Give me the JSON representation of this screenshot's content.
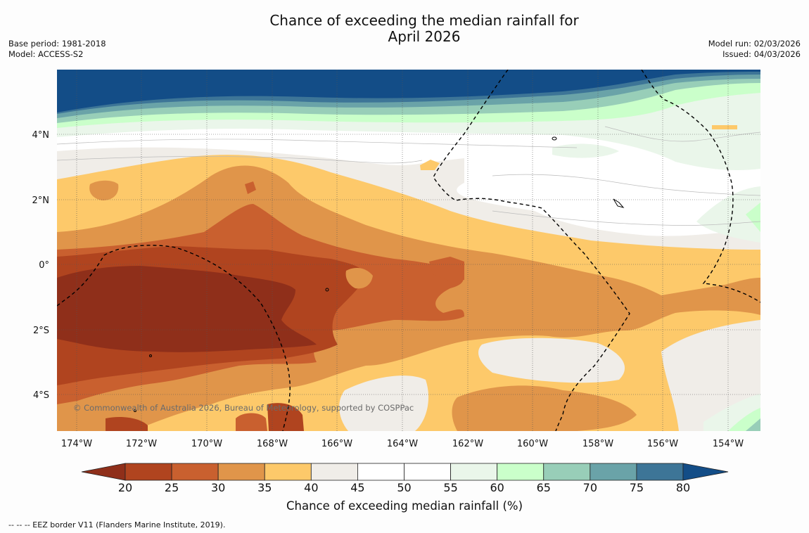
{
  "title": {
    "line1": "Chance of exceeding the median rainfall for",
    "line2": "April 2026"
  },
  "meta_left": {
    "base_period": "Base period: 1981-2018",
    "model": "Model: ACCESS-S2"
  },
  "meta_right": {
    "model_run": "Model run: 02/03/2026",
    "issued": "Issued: 04/03/2026"
  },
  "map": {
    "lon_labels": [
      "174°W",
      "172°W",
      "170°W",
      "168°W",
      "166°W",
      "164°W",
      "162°W",
      "160°W",
      "158°W",
      "156°W",
      "154°W"
    ],
    "lat_labels": [
      "4°N",
      "2°N",
      "0°",
      "2°S",
      "4°S"
    ],
    "copyright": "© Commonwealth of Australia 2026, Bureau of Meteorology, supported by COSPPac"
  },
  "colorbar": {
    "ticks": [
      "20",
      "25",
      "30",
      "35",
      "40",
      "45",
      "50",
      "55",
      "60",
      "65",
      "70",
      "75",
      "80"
    ],
    "colors": [
      "#8f2f1a",
      "#b0441f",
      "#c9602f",
      "#e0954a",
      "#fdc96a",
      "#f0ede8",
      "#ffffff",
      "#ffffff",
      "#eaf6ea",
      "#caffca",
      "#98ceb8",
      "#6aa3a8",
      "#3d7597",
      "#134d87"
    ],
    "label": "Chance of exceeding median rainfall (%)"
  },
  "footnote": "--  --  -- EEZ border V11 (Flanders Marine Institute, 2019)."
}
